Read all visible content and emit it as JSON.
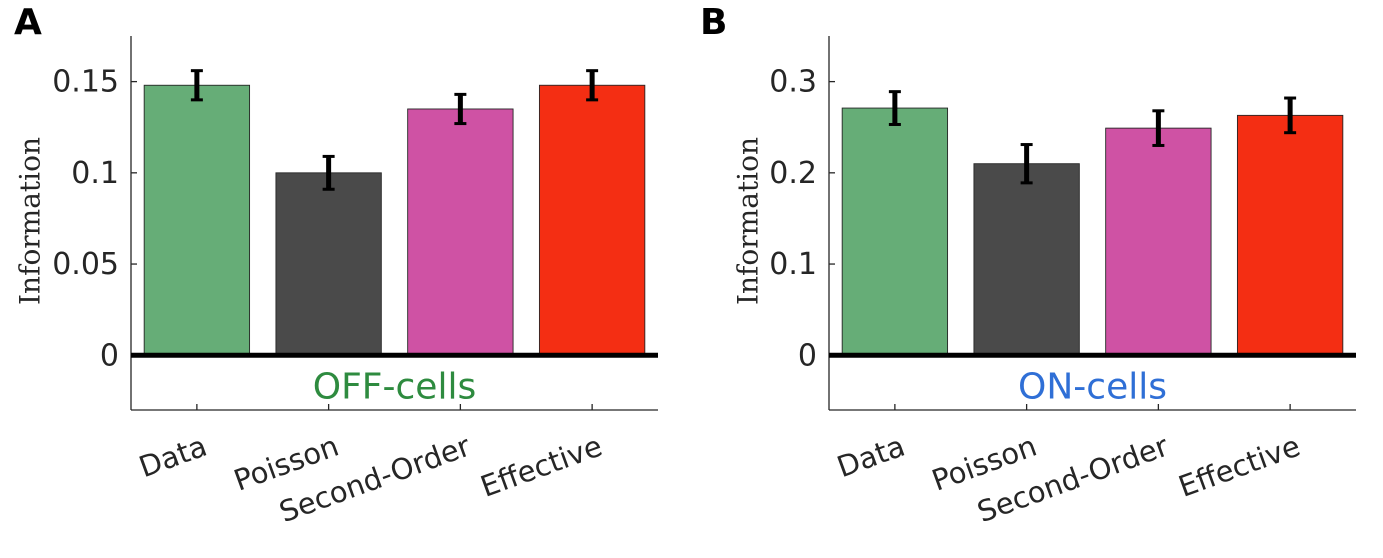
{
  "chart_data": [
    {
      "type": "bar",
      "panel_letter": "A",
      "categories": [
        "Data",
        "Poisson",
        "Second-Order",
        "Effective"
      ],
      "values": [
        0.148,
        0.1,
        0.135,
        0.148
      ],
      "errors": [
        0.008,
        0.009,
        0.008,
        0.008
      ],
      "colors": [
        "#66ad77",
        "#4a4a4a",
        "#cf52a4",
        "#f42e13"
      ],
      "ylabel": "Information",
      "ylim": [
        -0.03,
        0.175
      ],
      "yticks": [
        0,
        0.05,
        0.1,
        0.15
      ],
      "ytick_labels": [
        "0",
        "0.05",
        "0.1",
        "0.15"
      ],
      "annotation": "OFF-cells",
      "annotation_color": "#2e8b3f"
    },
    {
      "type": "bar",
      "panel_letter": "B",
      "categories": [
        "Data",
        "Poisson",
        "Second-Order",
        "Effective"
      ],
      "values": [
        0.271,
        0.21,
        0.249,
        0.263
      ],
      "errors": [
        0.018,
        0.021,
        0.019,
        0.019
      ],
      "colors": [
        "#66ad77",
        "#4a4a4a",
        "#cf52a4",
        "#f42e13"
      ],
      "ylabel": "Information",
      "ylim": [
        -0.06,
        0.35
      ],
      "yticks": [
        0,
        0.1,
        0.2,
        0.3
      ],
      "ytick_labels": [
        "0",
        "0.1",
        "0.2",
        "0.3"
      ],
      "annotation": "ON-cells",
      "annotation_color": "#2f6fd6"
    }
  ]
}
